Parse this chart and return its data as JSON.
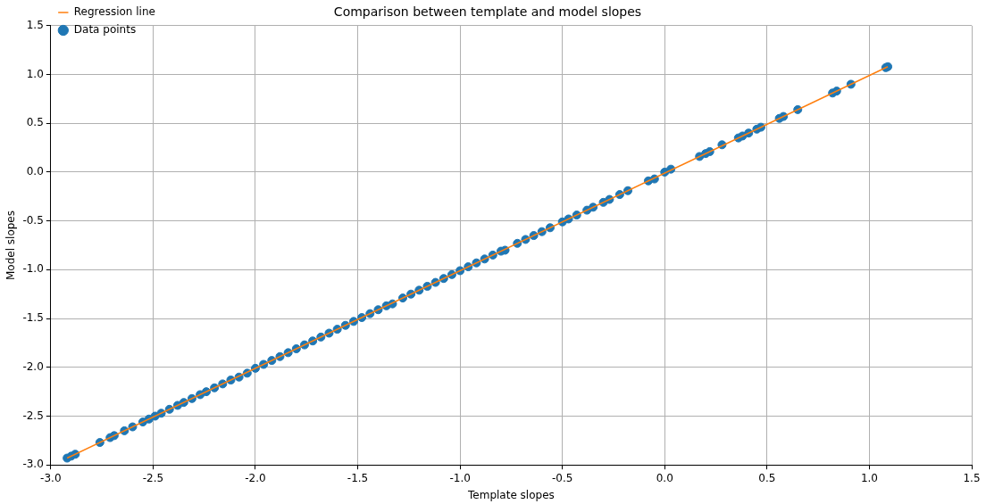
{
  "chart_data": {
    "type": "scatter",
    "title": "Comparison between template and model slopes",
    "xlabel": "Template slopes",
    "ylabel": "Model slopes",
    "xlim": [
      -3,
      1.5
    ],
    "ylim": [
      -3,
      1.5
    ],
    "xticks": [
      {
        "value": -3,
        "label": "-3.0"
      },
      -2.5,
      {
        "value": -2,
        "label": "-2.0"
      },
      -1.5,
      {
        "value": -1,
        "label": "-1.0"
      },
      -0.5,
      {
        "value": 0,
        "label": "0.0"
      },
      0.5,
      {
        "value": 1,
        "label": "1.0"
      },
      1.5
    ],
    "yticks": [
      {
        "value": -3,
        "label": "-3.0"
      },
      -2.5,
      {
        "value": -2,
        "label": "-2.0"
      },
      -1.5,
      {
        "value": -1,
        "label": "-1.0"
      },
      -0.5,
      {
        "value": 0,
        "label": "0.0"
      },
      0.5,
      {
        "value": 1,
        "label": "1.0"
      },
      1.5
    ],
    "grid": true,
    "legend": "top left",
    "series": [
      {
        "name": "Data points",
        "color": "#1f77b4",
        "marker": "circle",
        "x": [
          -2.92,
          -2.9,
          -2.88,
          -2.76,
          -2.71,
          -2.69,
          -2.64,
          -2.6,
          -2.55,
          -2.52,
          -2.49,
          -2.46,
          -2.42,
          -2.38,
          -2.35,
          -2.31,
          -2.27,
          -2.24,
          -2.2,
          -2.16,
          -2.12,
          -2.08,
          -2.04,
          -2.0,
          -1.96,
          -1.92,
          -1.88,
          -1.84,
          -1.8,
          -1.76,
          -1.72,
          -1.68,
          -1.64,
          -1.6,
          -1.56,
          -1.52,
          -1.48,
          -1.44,
          -1.4,
          -1.36,
          -1.33,
          -1.28,
          -1.24,
          -1.2,
          -1.16,
          -1.12,
          -1.08,
          -1.04,
          -1.0,
          -0.96,
          -0.92,
          -0.88,
          -0.84,
          -0.8,
          -0.78,
          -0.72,
          -0.68,
          -0.64,
          -0.6,
          -0.56,
          -0.5,
          -0.47,
          -0.43,
          -0.38,
          -0.35,
          -0.3,
          -0.27,
          -0.22,
          -0.18,
          -0.08,
          -0.05,
          0.0,
          0.03,
          0.17,
          0.2,
          0.22,
          0.28,
          0.36,
          0.38,
          0.41,
          0.45,
          0.47,
          0.56,
          0.58,
          0.65,
          0.82,
          0.84,
          0.91,
          1.08,
          1.09
        ],
        "values": [
          -2.93,
          -2.91,
          -2.89,
          -2.77,
          -2.72,
          -2.7,
          -2.65,
          -2.61,
          -2.56,
          -2.53,
          -2.5,
          -2.47,
          -2.43,
          -2.39,
          -2.36,
          -2.32,
          -2.28,
          -2.25,
          -2.21,
          -2.17,
          -2.13,
          -2.1,
          -2.06,
          -2.01,
          -1.97,
          -1.93,
          -1.89,
          -1.85,
          -1.81,
          -1.77,
          -1.73,
          -1.69,
          -1.65,
          -1.61,
          -1.57,
          -1.53,
          -1.49,
          -1.45,
          -1.41,
          -1.37,
          -1.35,
          -1.29,
          -1.25,
          -1.21,
          -1.17,
          -1.13,
          -1.09,
          -1.05,
          -1.01,
          -0.97,
          -0.93,
          -0.89,
          -0.85,
          -0.81,
          -0.8,
          -0.73,
          -0.69,
          -0.65,
          -0.61,
          -0.57,
          -0.51,
          -0.48,
          -0.44,
          -0.39,
          -0.36,
          -0.31,
          -0.28,
          -0.23,
          -0.19,
          -0.09,
          -0.07,
          0.0,
          0.03,
          0.16,
          0.19,
          0.21,
          0.28,
          0.35,
          0.37,
          0.4,
          0.44,
          0.46,
          0.55,
          0.57,
          0.64,
          0.81,
          0.83,
          0.9,
          1.07,
          1.08
        ]
      },
      {
        "name": "Regression line",
        "color": "#ff7f0e",
        "type": "line",
        "marker": "none",
        "x": [
          -2.92,
          1.09
        ],
        "values": [
          -2.93,
          1.08
        ]
      }
    ]
  }
}
